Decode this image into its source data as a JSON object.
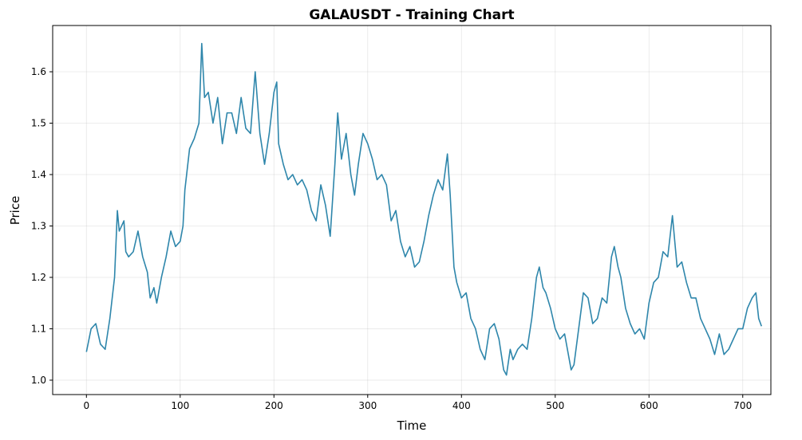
{
  "chart_data": {
    "type": "line",
    "title": "GALAUSDT - Training Chart",
    "x_label": "Time",
    "y_label": "Price",
    "x": [
      0,
      5,
      10,
      15,
      20,
      25,
      30,
      33,
      35,
      40,
      42,
      45,
      50,
      55,
      60,
      65,
      68,
      72,
      75,
      80,
      85,
      90,
      95,
      100,
      103,
      105,
      110,
      115,
      120,
      123,
      126,
      130,
      135,
      140,
      145,
      150,
      155,
      160,
      165,
      170,
      175,
      180,
      185,
      190,
      195,
      200,
      203,
      205,
      210,
      215,
      220,
      225,
      230,
      235,
      240,
      245,
      250,
      255,
      260,
      265,
      268,
      272,
      277,
      282,
      286,
      290,
      295,
      300,
      305,
      310,
      315,
      320,
      325,
      330,
      335,
      340,
      345,
      350,
      355,
      360,
      365,
      370,
      375,
      380,
      385,
      388,
      392,
      395,
      400,
      405,
      410,
      415,
      420,
      425,
      430,
      435,
      440,
      445,
      448,
      452,
      455,
      460,
      465,
      470,
      475,
      480,
      483,
      487,
      490,
      495,
      500,
      505,
      510,
      513,
      517,
      520,
      525,
      530,
      535,
      540,
      545,
      550,
      555,
      560,
      563,
      567,
      570,
      575,
      580,
      585,
      590,
      595,
      600,
      605,
      610,
      615,
      620,
      625,
      628,
      630,
      635,
      640,
      645,
      650,
      655,
      660,
      665,
      670,
      675,
      680,
      685,
      690,
      695,
      700,
      705,
      710,
      714,
      717,
      720
    ],
    "series": [
      {
        "name": "Price",
        "color": "#2e86ab",
        "values": [
          1.055,
          1.1,
          1.11,
          1.07,
          1.06,
          1.12,
          1.2,
          1.33,
          1.29,
          1.31,
          1.25,
          1.24,
          1.25,
          1.29,
          1.24,
          1.21,
          1.16,
          1.18,
          1.15,
          1.2,
          1.24,
          1.29,
          1.26,
          1.27,
          1.3,
          1.37,
          1.45,
          1.47,
          1.5,
          1.655,
          1.55,
          1.56,
          1.5,
          1.55,
          1.46,
          1.52,
          1.52,
          1.48,
          1.55,
          1.49,
          1.48,
          1.6,
          1.48,
          1.42,
          1.48,
          1.56,
          1.58,
          1.46,
          1.42,
          1.39,
          1.4,
          1.38,
          1.39,
          1.37,
          1.33,
          1.31,
          1.38,
          1.34,
          1.28,
          1.42,
          1.52,
          1.43,
          1.48,
          1.4,
          1.36,
          1.42,
          1.48,
          1.46,
          1.43,
          1.39,
          1.4,
          1.38,
          1.31,
          1.33,
          1.27,
          1.24,
          1.26,
          1.22,
          1.23,
          1.27,
          1.32,
          1.36,
          1.39,
          1.37,
          1.44,
          1.36,
          1.22,
          1.19,
          1.16,
          1.17,
          1.12,
          1.1,
          1.06,
          1.04,
          1.1,
          1.11,
          1.08,
          1.02,
          1.01,
          1.06,
          1.04,
          1.06,
          1.07,
          1.06,
          1.12,
          1.2,
          1.22,
          1.18,
          1.17,
          1.14,
          1.1,
          1.08,
          1.09,
          1.06,
          1.02,
          1.03,
          1.1,
          1.17,
          1.16,
          1.11,
          1.12,
          1.16,
          1.15,
          1.24,
          1.26,
          1.22,
          1.2,
          1.14,
          1.11,
          1.09,
          1.1,
          1.08,
          1.15,
          1.19,
          1.2,
          1.25,
          1.24,
          1.32,
          1.26,
          1.22,
          1.23,
          1.19,
          1.16,
          1.16,
          1.12,
          1.1,
          1.08,
          1.05,
          1.09,
          1.05,
          1.06,
          1.08,
          1.1,
          1.1,
          1.14,
          1.16,
          1.17,
          1.12,
          1.105
        ]
      }
    ],
    "xlim": [
      -36,
      730
    ],
    "ylim": [
      0.972,
      1.69
    ],
    "xticks": [
      0,
      100,
      200,
      300,
      400,
      500,
      600,
      700
    ],
    "yticks": [
      {
        "value": 1.0,
        "label": "1.0"
      },
      1.1,
      1.2,
      1.3,
      1.4,
      1.5,
      1.6
    ],
    "grid": true
  }
}
